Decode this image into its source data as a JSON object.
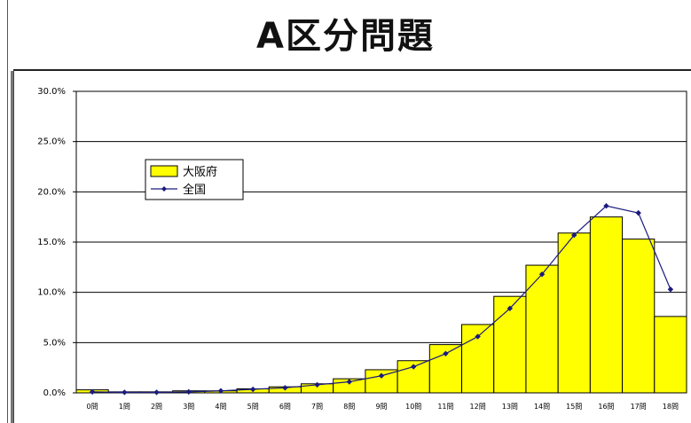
{
  "title": "A区分問題",
  "chart_data": {
    "type": "bar",
    "categories": [
      "0問",
      "1問",
      "2問",
      "3問",
      "4問",
      "5問",
      "6問",
      "7問",
      "8問",
      "9問",
      "10問",
      "11問",
      "12問",
      "13問",
      "14問",
      "15問",
      "16問",
      "17問",
      "18問"
    ],
    "ylim": [
      0,
      30
    ],
    "yticks": [
      "0.0%",
      "5.0%",
      "10.0%",
      "15.0%",
      "20.0%",
      "25.0%",
      "30.0%"
    ],
    "grid": true,
    "legend_position": "upper-left",
    "series": [
      {
        "name": "大阪府",
        "kind": "bar",
        "color": "#ffff00",
        "values": [
          0.3,
          0.1,
          0.1,
          0.2,
          0.2,
          0.4,
          0.6,
          0.9,
          1.4,
          2.3,
          3.2,
          4.8,
          6.8,
          9.6,
          12.7,
          15.9,
          17.5,
          15.3,
          7.6
        ]
      },
      {
        "name": "全国",
        "kind": "line",
        "color": "#1a1a80",
        "values": [
          0.1,
          0.05,
          0.05,
          0.1,
          0.2,
          0.35,
          0.5,
          0.8,
          1.1,
          1.7,
          2.6,
          3.9,
          5.6,
          8.4,
          11.8,
          15.7,
          18.6,
          17.9,
          10.3
        ]
      }
    ]
  }
}
